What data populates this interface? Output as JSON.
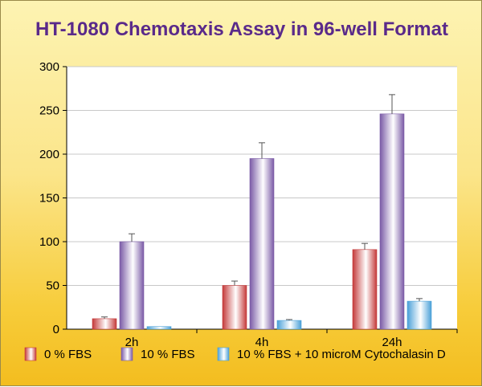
{
  "chart_data": {
    "type": "bar",
    "title": "HT-1080 Chemotaxis Assay in 96-well Format",
    "xlabel": "",
    "ylabel": "",
    "categories": [
      "2h",
      "4h",
      "24h"
    ],
    "ylim": [
      0,
      300
    ],
    "yticks": [
      0,
      50,
      100,
      150,
      200,
      250,
      300
    ],
    "grid": true,
    "legend_position": "bottom",
    "series": [
      {
        "name": "0 % FBS",
        "values": [
          12,
          50,
          91
        ],
        "errors": [
          2,
          5,
          7
        ],
        "color": "#c43a3a"
      },
      {
        "name": "10 % FBS",
        "values": [
          100,
          195,
          246
        ],
        "errors": [
          9,
          18,
          22
        ],
        "color": "#7a5aa6"
      },
      {
        "name": "10 % FBS + 10 microM Cytochalasin D",
        "values": [
          3,
          10,
          32
        ],
        "errors": [
          0,
          1,
          3
        ],
        "color": "#4aa0d8"
      }
    ]
  }
}
